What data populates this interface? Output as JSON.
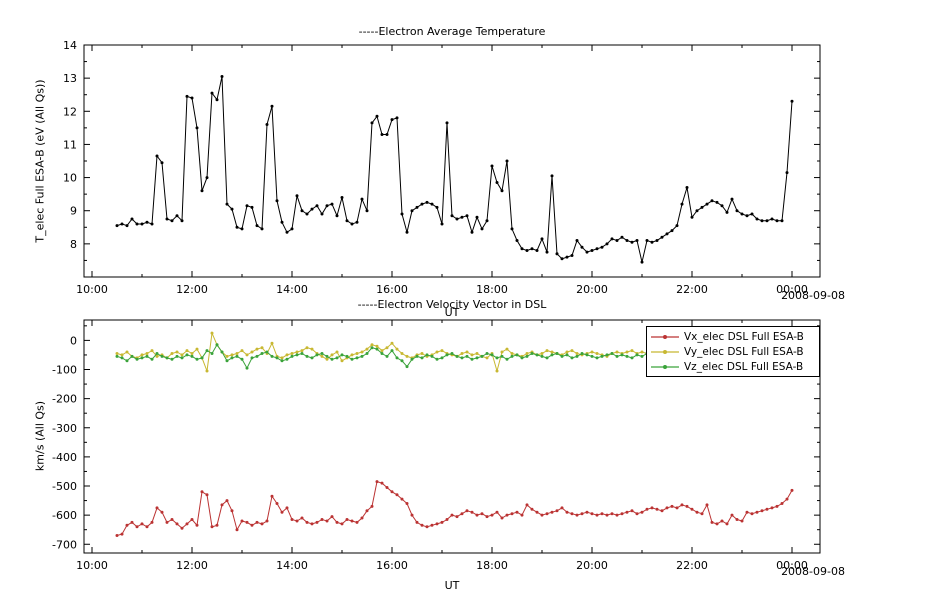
{
  "figure": {
    "background": "#ffffff",
    "axis_color": "#000000",
    "date_label": "2008-09-08",
    "time_axis_label": "UT"
  },
  "chart_data": [
    {
      "type": "line",
      "key": "temperature",
      "title": "-----Electron Average Temperature",
      "xlabel": "UT",
      "ylabel": "T_elec Full ESA-B (eV (All Qs))",
      "x_date_label": "2008-09-08",
      "xlim": [
        9.84,
        24.56
      ],
      "ylim": [
        7,
        14
      ],
      "yticks": [
        8,
        9,
        10,
        11,
        12,
        13,
        14
      ],
      "y_minor_step": 0.5,
      "xticks": [
        10,
        12,
        14,
        16,
        18,
        20,
        22,
        24
      ],
      "xtick_labels": [
        "10:00",
        "12:00",
        "14:00",
        "16:00",
        "18:00",
        "20:00",
        "22:00",
        "00:00"
      ],
      "grid": false,
      "series": [
        {
          "key": "t-elec",
          "name": "T_elec Full ESA-B",
          "color": "#000000",
          "x_hours": {
            "start": 10.5,
            "step": 0.1,
            "count": 136
          },
          "values": [
            8.55,
            8.6,
            8.55,
            8.75,
            8.6,
            8.6,
            8.65,
            8.6,
            10.65,
            10.45,
            8.75,
            8.7,
            8.85,
            8.7,
            12.45,
            12.4,
            11.5,
            9.6,
            10.0,
            12.55,
            12.35,
            13.05,
            9.2,
            9.05,
            8.5,
            8.45,
            9.15,
            9.1,
            8.55,
            8.45,
            11.6,
            12.15,
            9.3,
            8.65,
            8.35,
            8.45,
            9.45,
            9.0,
            8.9,
            9.05,
            9.15,
            8.9,
            9.15,
            9.2,
            8.85,
            9.4,
            8.7,
            8.6,
            8.65,
            9.35,
            9.0,
            11.65,
            11.85,
            11.3,
            11.3,
            11.75,
            11.8,
            8.9,
            8.35,
            9.0,
            9.1,
            9.2,
            9.25,
            9.2,
            9.1,
            8.6,
            11.65,
            8.85,
            8.75,
            8.8,
            8.85,
            8.35,
            8.8,
            8.45,
            8.7,
            10.35,
            9.85,
            9.6,
            10.5,
            8.45,
            8.1,
            7.85,
            7.8,
            7.85,
            7.8,
            8.15,
            7.75,
            10.05,
            7.7,
            7.55,
            7.6,
            7.65,
            8.1,
            7.9,
            7.75,
            7.8,
            7.85,
            7.9,
            8.0,
            8.15,
            8.1,
            8.2,
            8.1,
            8.05,
            8.1,
            7.45,
            8.1,
            8.05,
            8.1,
            8.2,
            8.3,
            8.4,
            8.55,
            9.2,
            9.7,
            8.8,
            9.0,
            9.1,
            9.2,
            9.3,
            9.25,
            9.15,
            8.95,
            9.35,
            9.0,
            8.9,
            8.85,
            8.9,
            8.75,
            8.7,
            8.7,
            8.75,
            8.7,
            8.7,
            10.15,
            12.3
          ]
        }
      ]
    },
    {
      "type": "line",
      "key": "velocity",
      "title": "-----Electron Velocity Vector in DSL",
      "xlabel": "UT",
      "ylabel": "km/s (All Qs)",
      "x_date_label": "2008-09-08",
      "xlim": [
        9.84,
        24.56
      ],
      "ylim": [
        -730,
        70
      ],
      "yticks": [
        0,
        -100,
        -200,
        -300,
        -400,
        -500,
        -600,
        -700
      ],
      "y_minor_step": 50,
      "xticks": [
        10,
        12,
        14,
        16,
        18,
        20,
        22,
        24
      ],
      "xtick_labels": [
        "10:00",
        "12:00",
        "14:00",
        "16:00",
        "18:00",
        "20:00",
        "22:00",
        "00:00"
      ],
      "grid": false,
      "legend_position": "top-right",
      "series": [
        {
          "key": "vx-elec",
          "name": "Vx_elec DSL Full ESA-B",
          "color": "#bb3333",
          "x_hours": {
            "start": 10.5,
            "step": 0.1,
            "count": 136
          },
          "values": [
            -670,
            -665,
            -635,
            -625,
            -640,
            -630,
            -640,
            -625,
            -575,
            -590,
            -625,
            -615,
            -630,
            -645,
            -630,
            -615,
            -635,
            -520,
            -530,
            -640,
            -635,
            -565,
            -550,
            -585,
            -650,
            -620,
            -625,
            -635,
            -625,
            -630,
            -620,
            -535,
            -560,
            -590,
            -575,
            -615,
            -620,
            -610,
            -625,
            -630,
            -625,
            -615,
            -620,
            -605,
            -625,
            -630,
            -615,
            -620,
            -625,
            -610,
            -585,
            -570,
            -485,
            -490,
            -505,
            -520,
            -530,
            -545,
            -560,
            -600,
            -625,
            -635,
            -640,
            -635,
            -630,
            -625,
            -615,
            -600,
            -605,
            -595,
            -585,
            -590,
            -600,
            -595,
            -605,
            -600,
            -590,
            -610,
            -600,
            -595,
            -590,
            -600,
            -565,
            -580,
            -590,
            -600,
            -595,
            -590,
            -585,
            -575,
            -590,
            -595,
            -600,
            -595,
            -590,
            -595,
            -600,
            -595,
            -600,
            -595,
            -600,
            -595,
            -590,
            -585,
            -595,
            -590,
            -580,
            -575,
            -580,
            -585,
            -575,
            -570,
            -575,
            -565,
            -570,
            -580,
            -590,
            -595,
            -565,
            -625,
            -630,
            -620,
            -630,
            -600,
            -615,
            -620,
            -590,
            -595,
            -590,
            -585,
            -580,
            -575,
            -570,
            -560,
            -545,
            -515
          ]
        },
        {
          "key": "vy-elec",
          "name": "Vy_elec DSL Full ESA-B",
          "color": "#c8b832",
          "x_hours": {
            "start": 10.5,
            "step": 0.1,
            "count": 136
          },
          "values": [
            -45,
            -50,
            -40,
            -55,
            -60,
            -50,
            -45,
            -35,
            -55,
            -50,
            -60,
            -45,
            -40,
            -50,
            -35,
            -45,
            -30,
            -60,
            -105,
            25,
            -15,
            -40,
            -55,
            -50,
            -45,
            -35,
            -50,
            -40,
            -30,
            -25,
            -45,
            -10,
            -55,
            -60,
            -50,
            -45,
            -40,
            -35,
            -25,
            -30,
            -45,
            -55,
            -65,
            -50,
            -40,
            -70,
            -60,
            -50,
            -45,
            -40,
            -30,
            -15,
            -20,
            -35,
            -25,
            -10,
            -30,
            -45,
            -55,
            -60,
            -50,
            -45,
            -55,
            -50,
            -40,
            -35,
            -45,
            -50,
            -55,
            -45,
            -40,
            -50,
            -45,
            -55,
            -60,
            -45,
            -105,
            -40,
            -30,
            -45,
            -50,
            -55,
            -45,
            -40,
            -50,
            -45,
            -35,
            -40,
            -45,
            -50,
            -40,
            -35,
            -45,
            -50,
            -45,
            -40,
            -45,
            -50,
            -55,
            -45,
            -40,
            -45,
            -40,
            -35,
            -45,
            -40,
            -45,
            -50,
            -45,
            -40,
            -35,
            -45,
            -40,
            -45,
            -50,
            -40,
            -45,
            -35,
            -40,
            -45,
            -50,
            -45,
            -40,
            -45,
            -55,
            -50,
            -45,
            -40,
            -45,
            -40,
            -35,
            -45,
            -40,
            -45,
            -40,
            -35
          ]
        },
        {
          "key": "vz-elec",
          "name": "Vz_elec DSL Full ESA-B",
          "color": "#3aa33a",
          "x_hours": {
            "start": 10.5,
            "step": 0.1,
            "count": 136
          },
          "values": [
            -55,
            -60,
            -70,
            -55,
            -65,
            -60,
            -55,
            -65,
            -45,
            -55,
            -60,
            -65,
            -55,
            -60,
            -50,
            -55,
            -65,
            -60,
            -35,
            -45,
            -15,
            -40,
            -70,
            -60,
            -55,
            -65,
            -95,
            -60,
            -55,
            -45,
            -40,
            -55,
            -60,
            -70,
            -65,
            -55,
            -50,
            -45,
            -55,
            -60,
            -50,
            -45,
            -55,
            -65,
            -60,
            -50,
            -55,
            -65,
            -60,
            -55,
            -45,
            -25,
            -30,
            -45,
            -55,
            -35,
            -60,
            -70,
            -90,
            -65,
            -55,
            -60,
            -50,
            -55,
            -65,
            -60,
            -50,
            -45,
            -55,
            -60,
            -55,
            -65,
            -60,
            -55,
            -45,
            -50,
            -60,
            -55,
            -65,
            -55,
            -50,
            -60,
            -55,
            -45,
            -50,
            -55,
            -60,
            -50,
            -45,
            -55,
            -50,
            -60,
            -55,
            -45,
            -50,
            -55,
            -60,
            -55,
            -50,
            -45,
            -55,
            -50,
            -55,
            -60,
            -50,
            -55,
            -45,
            -50,
            -55,
            -60,
            -55,
            -50,
            -45,
            -55,
            -60,
            -50,
            -55,
            -45,
            -50,
            -55,
            -60,
            -55,
            -50,
            -55,
            -45,
            -50,
            -55,
            -50,
            -60,
            -55,
            -50,
            -45,
            -50,
            -55,
            -50,
            -45
          ]
        }
      ]
    }
  ]
}
